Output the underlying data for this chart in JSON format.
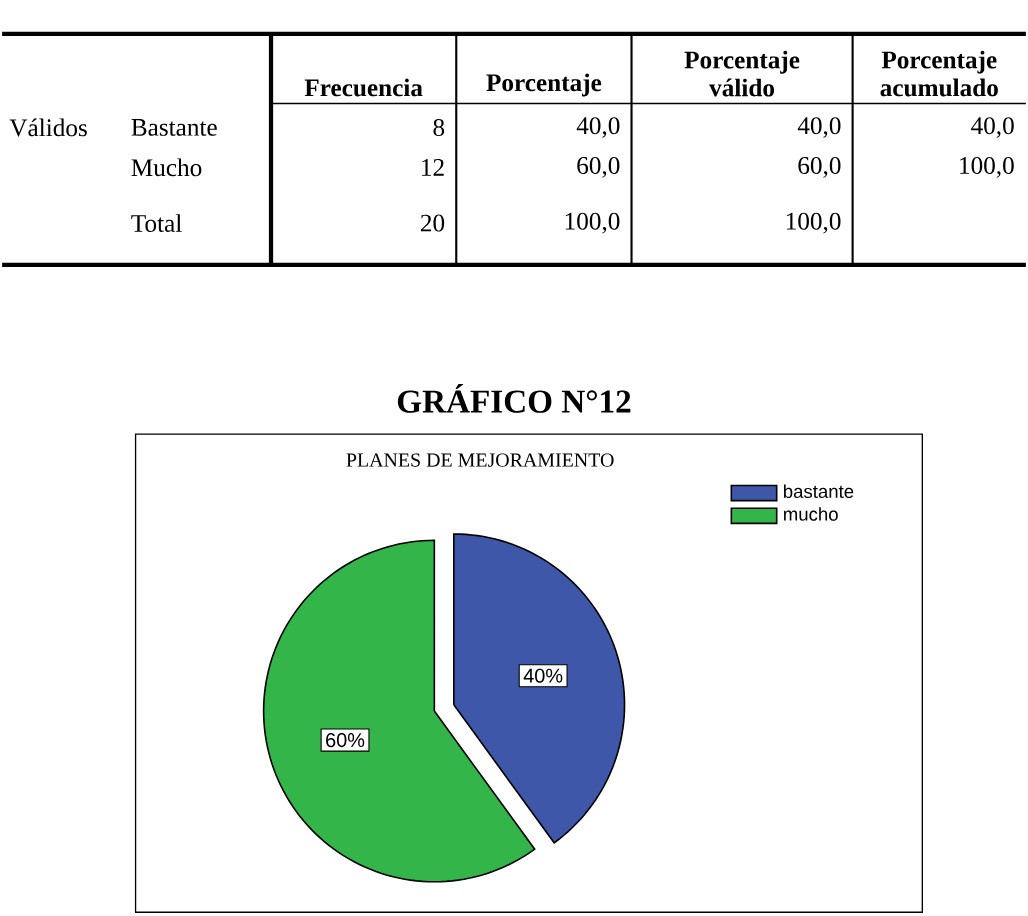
{
  "chart_data": {
    "type": "pie",
    "title": "GRÁFICO N°12",
    "subtitle": "PLANES DE MEJORAMIENTO",
    "categories": [
      "bastante",
      "mucho"
    ],
    "values": [
      40,
      60
    ],
    "colors": [
      "#3f57a8",
      "#33b54a"
    ],
    "value_labels": [
      "40%",
      "60%"
    ],
    "legend": "top right",
    "annotations": [
      "Frecuencia",
      "Porcentaje",
      "Porcentaje válido",
      "Porcentaje acumulado",
      "Válidos",
      "Bastante",
      "8",
      "40,0",
      "40,0",
      "40,0",
      "Mucho",
      "12",
      "60,0",
      "60,0",
      "100,0",
      "Total",
      "20",
      "100,0",
      "100,0"
    ]
  }
}
